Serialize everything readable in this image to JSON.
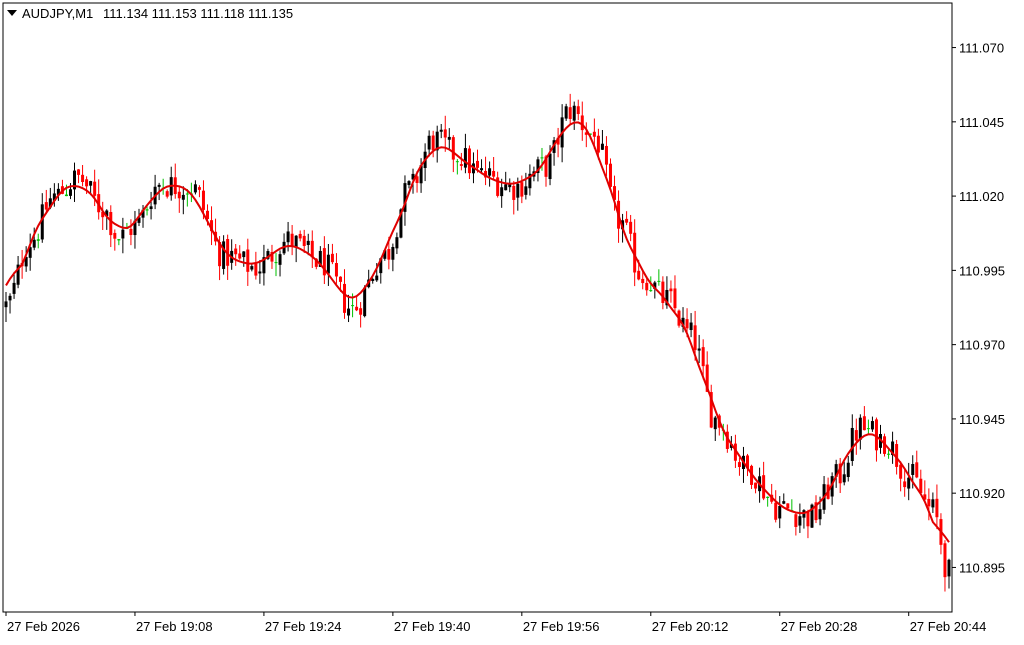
{
  "header": {
    "symbol": "AUDJPY,M1",
    "ohlc": "111.134 111.153 111.118 111.135",
    "menu_icon": "triangle-down-icon"
  },
  "colors": {
    "background": "#ffffff",
    "bull_candle": "#000000",
    "bear_candle": "#ff0000",
    "doji": "#00c000",
    "ma_line": "#e00000",
    "axis": "#000000"
  },
  "chart_data": {
    "type": "candlestick",
    "title": "",
    "ylim": [
      110.88,
      111.085
    ],
    "y_ticks": [
      111.07,
      111.045,
      111.02,
      110.995,
      110.97,
      110.945,
      110.92,
      110.895
    ],
    "y_tick_labels": [
      "111.070",
      "111.045",
      "111.020",
      "110.995",
      "110.970",
      "110.945",
      "110.920",
      "110.895"
    ],
    "x_tick_labels": [
      "27 Feb 2026",
      "27 Feb 19:08",
      "27 Feb 19:24",
      "27 Feb 19:40",
      "27 Feb 19:56",
      "27 Feb 20:12",
      "27 Feb 20:28",
      "27 Feb 20:44"
    ],
    "x_tick_index": [
      0,
      32,
      64,
      96,
      128,
      160,
      192,
      224
    ],
    "grid": false,
    "ma_series_name": "",
    "close_path": [
      [
        0,
        110.983
      ],
      [
        6,
        111.005
      ],
      [
        12,
        111.02
      ],
      [
        18,
        111.026
      ],
      [
        24,
        111.016
      ],
      [
        28,
        111.006
      ],
      [
        32,
        111.01
      ],
      [
        38,
        111.024
      ],
      [
        46,
        111.023
      ],
      [
        54,
        111.0
      ],
      [
        62,
        110.996
      ],
      [
        70,
        111.005
      ],
      [
        78,
        110.998
      ],
      [
        86,
        110.982
      ],
      [
        94,
        111.0
      ],
      [
        100,
        111.022
      ],
      [
        106,
        111.039
      ],
      [
        112,
        111.034
      ],
      [
        118,
        111.027
      ],
      [
        126,
        111.023
      ],
      [
        134,
        111.03
      ],
      [
        140,
        111.049
      ],
      [
        146,
        111.04
      ],
      [
        152,
        111.012
      ],
      [
        158,
        110.993
      ],
      [
        164,
        110.985
      ],
      [
        170,
        110.973
      ],
      [
        176,
        110.945
      ],
      [
        184,
        110.928
      ],
      [
        192,
        110.915
      ],
      [
        200,
        110.912
      ],
      [
        206,
        110.925
      ],
      [
        212,
        110.942
      ],
      [
        218,
        110.938
      ],
      [
        224,
        110.926
      ],
      [
        230,
        110.914
      ],
      [
        234,
        110.893
      ]
    ],
    "bar_count": 235
  }
}
